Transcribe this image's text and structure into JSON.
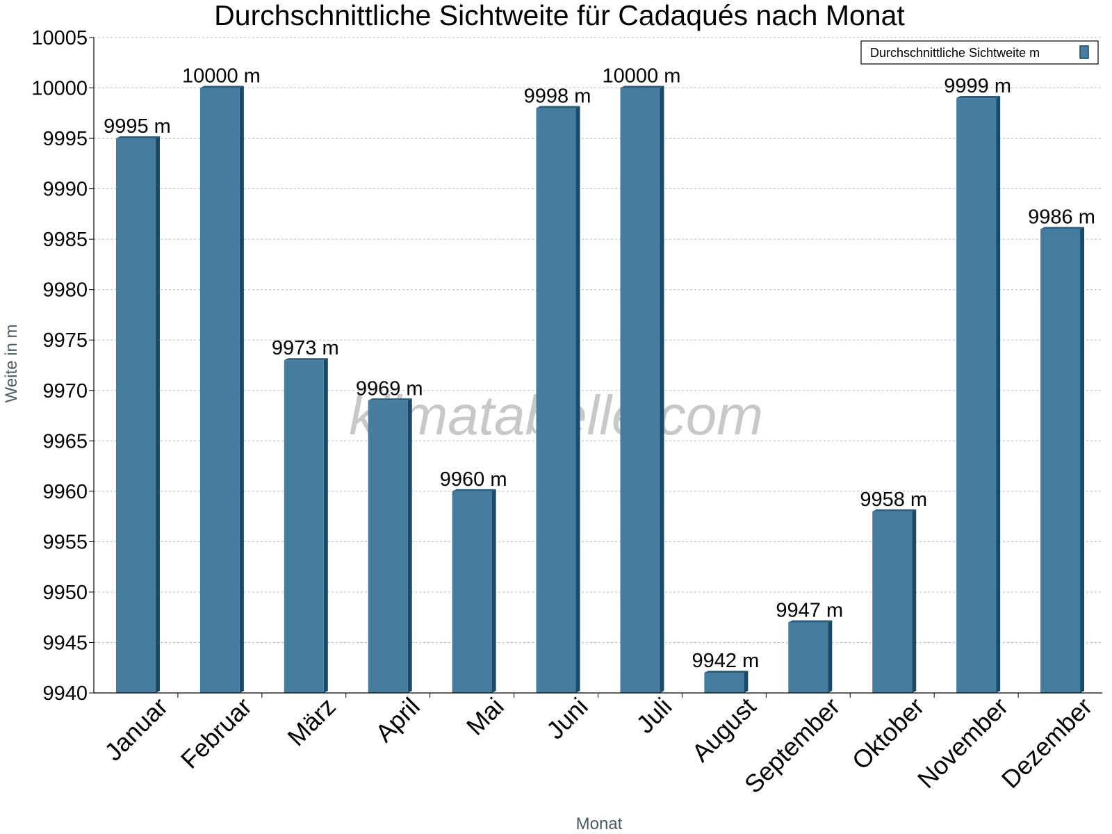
{
  "chart_data": {
    "type": "bar",
    "title": "Durchschnittliche Sichtweite für Cadaqués nach Monat",
    "xlabel": "Monat",
    "ylabel": "Weite in m",
    "categories": [
      "Januar",
      "Februar",
      "März",
      "April",
      "Mai",
      "Juni",
      "Juli",
      "August",
      "September",
      "Oktober",
      "November",
      "Dezember"
    ],
    "series": [
      {
        "name": "Durchschnittliche Sichtweite m",
        "values": [
          9995,
          10000,
          9973,
          9969,
          9960,
          9998,
          10000,
          9942,
          9947,
          9958,
          9999,
          9986
        ],
        "labels": [
          "9995 m",
          "10000 m",
          "9973 m",
          "9969 m",
          "9960 m",
          "9998 m",
          "10000 m",
          "9942 m",
          "9947 m",
          "9958 m",
          "9999 m",
          "9986 m"
        ]
      }
    ],
    "ylim": [
      9940,
      10005
    ],
    "yticks": [
      "9940",
      "9945",
      "9950",
      "9955",
      "9960",
      "9965",
      "9970",
      "9975",
      "9980",
      "9985",
      "9990",
      "9995",
      "10000",
      "10005"
    ],
    "grid": true,
    "legend_position": "top-right",
    "colors": {
      "bar_front": "#467c9d",
      "bar_side": "#1a4a6a",
      "bar_top": "#2a5f82",
      "grid": "#bbbbbb"
    },
    "watermark": "klimatabelle.com"
  }
}
